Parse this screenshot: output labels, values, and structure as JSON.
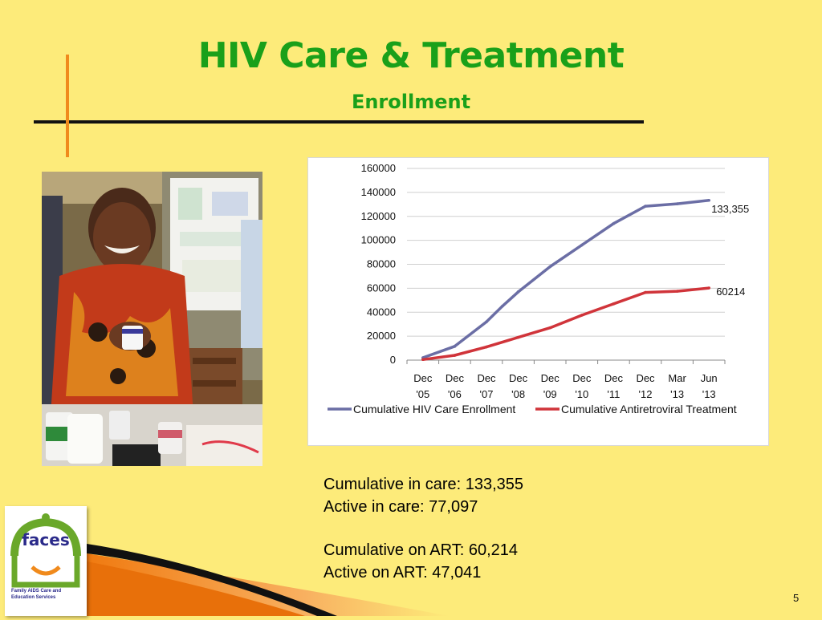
{
  "slide": {
    "title": "HIV Care & Treatment",
    "subtitle": "Enrollment",
    "page_number": "5",
    "colors": {
      "background": "#fdeb7a",
      "title": "#1aa01a",
      "accent_orange": "#f08a1c"
    }
  },
  "photo": {
    "icon": "woman-holding-medicine-photo"
  },
  "stats": {
    "cumulative_in_care": "Cumulative in care: 133,355",
    "active_in_care": "Active in care: 77,097",
    "cumulative_on_art": "Cumulative on ART: 60,214",
    "active_on_art": "Active on ART: 47,041"
  },
  "logo": {
    "word": "faces",
    "caption": "Family AIDS Care and Education Services",
    "icon": "faces-logo-icon"
  },
  "chart_data": {
    "type": "line",
    "categories": [
      "Dec '05",
      "Dec '06",
      "Dec '07",
      "Dec '08",
      "Dec '09",
      "Dec '10",
      "Dec '11",
      "Dec '12",
      "Mar '13",
      "Jun '13"
    ],
    "category_lines": [
      [
        "Dec",
        "'05"
      ],
      [
        "Dec",
        "'06"
      ],
      [
        "Dec",
        "'07"
      ],
      [
        "Dec",
        "'08"
      ],
      [
        "Dec",
        "'09"
      ],
      [
        "Dec",
        "'10"
      ],
      [
        "Dec",
        "'11"
      ],
      [
        "Dec",
        "'12"
      ],
      [
        "Mar",
        "'13"
      ],
      [
        "Jun",
        "'13"
      ]
    ],
    "x_positions": [
      0,
      1,
      2,
      3,
      4,
      5,
      6,
      7,
      8,
      9
    ],
    "series": [
      {
        "name": "Cumulative HIV Care Enrollment",
        "color": "#6b6ea5",
        "x": [
          0,
          1,
          2,
          2.5,
          3,
          4,
          5,
          6,
          7,
          8,
          9
        ],
        "values": [
          2000,
          11500,
          32000,
          45000,
          57000,
          78000,
          96000,
          114000,
          128500,
          130500,
          133355
        ],
        "end_label": "133,355"
      },
      {
        "name": "Cumulative Antiretroviral Treatment",
        "color": "#d0343a",
        "x": [
          0,
          1,
          2,
          3,
          4,
          5,
          6,
          7,
          8,
          9
        ],
        "values": [
          500,
          4000,
          11000,
          19000,
          27000,
          37500,
          47000,
          56500,
          57500,
          60214
        ],
        "end_label": "60214"
      }
    ],
    "yticks": [
      0,
      20000,
      40000,
      60000,
      80000,
      100000,
      120000,
      140000,
      160000
    ],
    "ylim": [
      0,
      160000
    ],
    "grid": true,
    "legend_position": "bottom"
  }
}
